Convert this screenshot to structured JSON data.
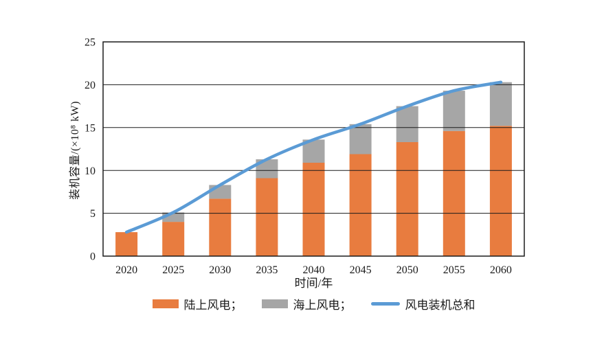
{
  "page": {
    "background_color": "#ffffff",
    "text_color": "#1a1a1a"
  },
  "chart_data": {
    "type": "bar",
    "subtype": "stacked-bars-with-line-overlay",
    "title": "",
    "xlabel": "时间/年",
    "ylabel": "装机容量/(×10⁸ kW)",
    "categories": [
      "2020",
      "2025",
      "2030",
      "2035",
      "2040",
      "2045",
      "2050",
      "2055",
      "2060"
    ],
    "series": [
      {
        "name": "陆上风电",
        "type": "bar",
        "color": "#E87C3F",
        "values": [
          2.8,
          4.0,
          6.7,
          9.1,
          10.9,
          11.9,
          13.3,
          14.6,
          15.2
        ]
      },
      {
        "name": "海上风电",
        "type": "bar",
        "color": "#A6A6A6",
        "values": [
          0.0,
          1.1,
          1.6,
          2.2,
          2.7,
          3.5,
          4.2,
          4.7,
          5.1
        ]
      },
      {
        "name": "风电装机总和",
        "type": "line",
        "color": "#5B9BD5",
        "values": [
          2.8,
          5.1,
          8.3,
          11.3,
          13.6,
          15.4,
          17.5,
          19.3,
          20.3
        ]
      }
    ],
    "legend_labels": [
      "陆上风电；",
      "海上风电；",
      "风电装机总和"
    ],
    "legend_position": "bottom",
    "ylim": [
      0,
      25
    ],
    "yticks": [
      0,
      5,
      10,
      15,
      20,
      25
    ],
    "grid": true,
    "axis_color": "#1a1a1a"
  }
}
